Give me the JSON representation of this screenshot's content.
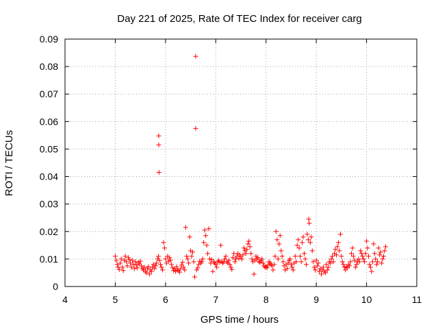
{
  "chart_data": {
    "type": "scatter",
    "title": "Day 221 of 2025, Rate Of TEC Index for receiver carg",
    "xlabel": "GPS time / hours",
    "ylabel": "ROTI / TECUs",
    "xlim": [
      4,
      11
    ],
    "ylim": [
      0,
      0.09
    ],
    "xticks": [
      "4",
      "5",
      "6",
      "7",
      "8",
      "9",
      "10",
      "11"
    ],
    "yticks": [
      "0",
      "0.01",
      "0.02",
      "0.03",
      "0.04",
      "0.05",
      "0.06",
      "0.07",
      "0.08",
      "0.09"
    ],
    "grid": true,
    "marker": "+",
    "color": "#ff0000",
    "series": [
      {
        "points": [
          [
            5.0,
            0.011
          ],
          [
            5.02,
            0.0095
          ],
          [
            5.04,
            0.008
          ],
          [
            5.06,
            0.007
          ],
          [
            5.08,
            0.0062
          ],
          [
            5.1,
            0.0085
          ],
          [
            5.12,
            0.01
          ],
          [
            5.14,
            0.007
          ],
          [
            5.16,
            0.0058
          ],
          [
            5.18,
            0.0095
          ],
          [
            5.2,
            0.011
          ],
          [
            5.22,
            0.009
          ],
          [
            5.24,
            0.0075
          ],
          [
            5.26,
            0.0105
          ],
          [
            5.28,
            0.0098
          ],
          [
            5.3,
            0.0085
          ],
          [
            5.32,
            0.007
          ],
          [
            5.34,
            0.0095
          ],
          [
            5.36,
            0.008
          ],
          [
            5.38,
            0.0065
          ],
          [
            5.4,
            0.009
          ],
          [
            5.42,
            0.0078
          ],
          [
            5.44,
            0.0068
          ],
          [
            5.46,
            0.0088
          ],
          [
            5.48,
            0.0082
          ],
          [
            5.5,
            0.0092
          ],
          [
            5.52,
            0.0075
          ],
          [
            5.54,
            0.0065
          ],
          [
            5.56,
            0.006
          ],
          [
            5.58,
            0.007
          ],
          [
            5.6,
            0.0055
          ],
          [
            5.62,
            0.005
          ],
          [
            5.64,
            0.0065
          ],
          [
            5.66,
            0.0072
          ],
          [
            5.68,
            0.0045
          ],
          [
            5.7,
            0.006
          ],
          [
            5.72,
            0.0055
          ],
          [
            5.74,
            0.007
          ],
          [
            5.76,
            0.008
          ],
          [
            5.78,
            0.0065
          ],
          [
            5.8,
            0.0075
          ],
          [
            5.82,
            0.0085
          ],
          [
            5.84,
            0.01
          ],
          [
            5.86,
            0.011
          ],
          [
            5.88,
            0.0095
          ],
          [
            5.865,
            0.0548
          ],
          [
            5.865,
            0.0515
          ],
          [
            5.87,
            0.0415
          ],
          [
            5.9,
            0.008
          ],
          [
            5.92,
            0.007
          ],
          [
            5.94,
            0.006
          ],
          [
            5.96,
            0.016
          ],
          [
            5.98,
            0.014
          ],
          [
            6.0,
            0.01
          ],
          [
            6.02,
            0.0085
          ],
          [
            6.04,
            0.011
          ],
          [
            6.06,
            0.0092
          ],
          [
            6.08,
            0.0105
          ],
          [
            6.1,
            0.0095
          ],
          [
            6.12,
            0.008
          ],
          [
            6.14,
            0.0068
          ],
          [
            6.16,
            0.0058
          ],
          [
            6.18,
            0.0065
          ],
          [
            6.2,
            0.0055
          ],
          [
            6.22,
            0.0072
          ],
          [
            6.24,
            0.006
          ],
          [
            6.26,
            0.0058
          ],
          [
            6.28,
            0.0052
          ],
          [
            6.3,
            0.0065
          ],
          [
            6.32,
            0.0078
          ],
          [
            6.34,
            0.0088
          ],
          [
            6.36,
            0.007
          ],
          [
            6.38,
            0.006
          ],
          [
            6.4,
            0.0215
          ],
          [
            6.42,
            0.011
          ],
          [
            6.44,
            0.01
          ],
          [
            6.46,
            0.0085
          ],
          [
            6.48,
            0.018
          ],
          [
            6.5,
            0.013
          ],
          [
            6.52,
            0.011
          ],
          [
            6.54,
            0.0125
          ],
          [
            6.56,
            0.009
          ],
          [
            6.58,
            0.0035
          ],
          [
            6.6,
            0.0837
          ],
          [
            6.6,
            0.0575
          ],
          [
            6.62,
            0.006
          ],
          [
            6.64,
            0.0068
          ],
          [
            6.66,
            0.008
          ],
          [
            6.68,
            0.0092
          ],
          [
            6.7,
            0.0085
          ],
          [
            6.72,
            0.009
          ],
          [
            6.74,
            0.01
          ],
          [
            6.76,
            0.016
          ],
          [
            6.78,
            0.0205
          ],
          [
            6.8,
            0.0185
          ],
          [
            6.82,
            0.015
          ],
          [
            6.84,
            0.012
          ],
          [
            6.86,
            0.021
          ],
          [
            6.88,
            0.01
          ],
          [
            6.9,
            0.0085
          ],
          [
            6.92,
            0.0098
          ],
          [
            6.94,
            0.0055
          ],
          [
            6.96,
            0.009
          ],
          [
            6.98,
            0.0085
          ],
          [
            7.0,
            0.008
          ],
          [
            7.02,
            0.007
          ],
          [
            7.04,
            0.009
          ],
          [
            7.06,
            0.0095
          ],
          [
            7.08,
            0.0088
          ],
          [
            7.1,
            0.015
          ],
          [
            7.12,
            0.009
          ],
          [
            7.14,
            0.0085
          ],
          [
            7.16,
            0.009
          ],
          [
            7.18,
            0.01
          ],
          [
            7.2,
            0.011
          ],
          [
            7.22,
            0.009
          ],
          [
            7.24,
            0.0085
          ],
          [
            7.26,
            0.0095
          ],
          [
            7.28,
            0.008
          ],
          [
            7.3,
            0.007
          ],
          [
            7.32,
            0.0062
          ],
          [
            7.34,
            0.0105
          ],
          [
            7.36,
            0.012
          ],
          [
            7.38,
            0.009
          ],
          [
            7.4,
            0.01
          ],
          [
            7.42,
            0.011
          ],
          [
            7.44,
            0.012
          ],
          [
            7.46,
            0.0102
          ],
          [
            7.48,
            0.0115
          ],
          [
            7.5,
            0.0108
          ],
          [
            7.52,
            0.01
          ],
          [
            7.54,
            0.0115
          ],
          [
            7.56,
            0.014
          ],
          [
            7.58,
            0.013
          ],
          [
            7.6,
            0.012
          ],
          [
            7.62,
            0.0135
          ],
          [
            7.64,
            0.0155
          ],
          [
            7.66,
            0.0165
          ],
          [
            7.68,
            0.0145
          ],
          [
            7.7,
            0.012
          ],
          [
            7.72,
            0.01
          ],
          [
            7.74,
            0.009
          ],
          [
            7.76,
            0.0045
          ],
          [
            7.78,
            0.0095
          ],
          [
            7.8,
            0.011
          ],
          [
            7.82,
            0.01
          ],
          [
            7.84,
            0.0105
          ],
          [
            7.86,
            0.009
          ],
          [
            7.88,
            0.0088
          ],
          [
            7.9,
            0.0095
          ],
          [
            7.92,
            0.01
          ],
          [
            7.94,
            0.0085
          ],
          [
            7.96,
            0.0075
          ],
          [
            7.98,
            0.007
          ],
          [
            8.0,
            0.0072
          ],
          [
            8.02,
            0.0068
          ],
          [
            8.04,
            0.0078
          ],
          [
            8.06,
            0.009
          ],
          [
            8.08,
            0.0085
          ],
          [
            8.1,
            0.008
          ],
          [
            8.12,
            0.0075
          ],
          [
            8.14,
            0.006
          ],
          [
            8.16,
            0.008
          ],
          [
            8.18,
            0.011
          ],
          [
            8.2,
            0.02
          ],
          [
            8.22,
            0.017
          ],
          [
            8.24,
            0.01
          ],
          [
            8.26,
            0.0155
          ],
          [
            8.28,
            0.0185
          ],
          [
            8.3,
            0.013
          ],
          [
            8.32,
            0.011
          ],
          [
            8.34,
            0.009
          ],
          [
            8.36,
            0.0075
          ],
          [
            8.38,
            0.006
          ],
          [
            8.4,
            0.008
          ],
          [
            8.42,
            0.0065
          ],
          [
            8.44,
            0.0085
          ],
          [
            8.46,
            0.0095
          ],
          [
            8.48,
            0.01
          ],
          [
            8.5,
            0.008
          ],
          [
            8.52,
            0.007
          ],
          [
            8.54,
            0.006
          ],
          [
            8.56,
            0.0085
          ],
          [
            8.58,
            0.011
          ],
          [
            8.6,
            0.009
          ],
          [
            8.62,
            0.015
          ],
          [
            8.64,
            0.017
          ],
          [
            8.66,
            0.014
          ],
          [
            8.68,
            0.011
          ],
          [
            8.7,
            0.009
          ],
          [
            8.72,
            0.016
          ],
          [
            8.74,
            0.018
          ],
          [
            8.76,
            0.012
          ],
          [
            8.78,
            0.01
          ],
          [
            8.8,
            0.008
          ],
          [
            8.82,
            0.019
          ],
          [
            8.84,
            0.017
          ],
          [
            8.85,
            0.0245
          ],
          [
            8.86,
            0.023
          ],
          [
            8.88,
            0.016
          ],
          [
            8.9,
            0.018
          ],
          [
            8.92,
            0.013
          ],
          [
            8.94,
            0.009
          ],
          [
            8.96,
            0.007
          ],
          [
            8.98,
            0.006
          ],
          [
            9.0,
            0.0095
          ],
          [
            9.02,
            0.0075
          ],
          [
            9.04,
            0.0085
          ],
          [
            9.06,
            0.0055
          ],
          [
            9.08,
            0.0065
          ],
          [
            9.1,
            0.0045
          ],
          [
            9.12,
            0.006
          ],
          [
            9.14,
            0.007
          ],
          [
            9.16,
            0.0055
          ],
          [
            9.18,
            0.005
          ],
          [
            9.2,
            0.008
          ],
          [
            9.22,
            0.006
          ],
          [
            9.24,
            0.007
          ],
          [
            9.26,
            0.009
          ],
          [
            9.28,
            0.0085
          ],
          [
            9.3,
            0.01
          ],
          [
            9.32,
            0.011
          ],
          [
            9.34,
            0.009
          ],
          [
            9.36,
            0.012
          ],
          [
            9.38,
            0.0135
          ],
          [
            9.4,
            0.0115
          ],
          [
            9.42,
            0.0145
          ],
          [
            9.44,
            0.016
          ],
          [
            9.46,
            0.013
          ],
          [
            9.48,
            0.019
          ],
          [
            9.5,
            0.011
          ],
          [
            9.52,
            0.009
          ],
          [
            9.54,
            0.008
          ],
          [
            9.56,
            0.007
          ],
          [
            9.58,
            0.006
          ],
          [
            9.6,
            0.0072
          ],
          [
            9.62,
            0.0068
          ],
          [
            9.64,
            0.008
          ],
          [
            9.66,
            0.0075
          ],
          [
            9.68,
            0.009
          ],
          [
            9.7,
            0.012
          ],
          [
            9.72,
            0.014
          ],
          [
            9.74,
            0.011
          ],
          [
            9.76,
            0.0095
          ],
          [
            9.78,
            0.007
          ],
          [
            9.8,
            0.008
          ],
          [
            9.82,
            0.009
          ],
          [
            9.84,
            0.01
          ],
          [
            9.86,
            0.009
          ],
          [
            9.88,
            0.013
          ],
          [
            9.9,
            0.012
          ],
          [
            9.92,
            0.011
          ],
          [
            9.94,
            0.01
          ],
          [
            9.96,
            0.009
          ],
          [
            9.98,
            0.012
          ],
          [
            10.0,
            0.0165
          ],
          [
            10.02,
            0.014
          ],
          [
            10.04,
            0.011
          ],
          [
            10.06,
            0.008
          ],
          [
            10.08,
            0.007
          ],
          [
            10.1,
            0.0055
          ],
          [
            10.12,
            0.009
          ],
          [
            10.14,
            0.0155
          ],
          [
            10.16,
            0.012
          ],
          [
            10.18,
            0.01
          ],
          [
            10.2,
            0.008
          ],
          [
            10.22,
            0.009
          ],
          [
            10.24,
            0.014
          ],
          [
            10.26,
            0.0115
          ],
          [
            10.28,
            0.0125
          ],
          [
            10.3,
            0.0085
          ],
          [
            10.32,
            0.01
          ],
          [
            10.34,
            0.011
          ],
          [
            10.36,
            0.013
          ],
          [
            10.38,
            0.0145
          ]
        ]
      }
    ]
  }
}
